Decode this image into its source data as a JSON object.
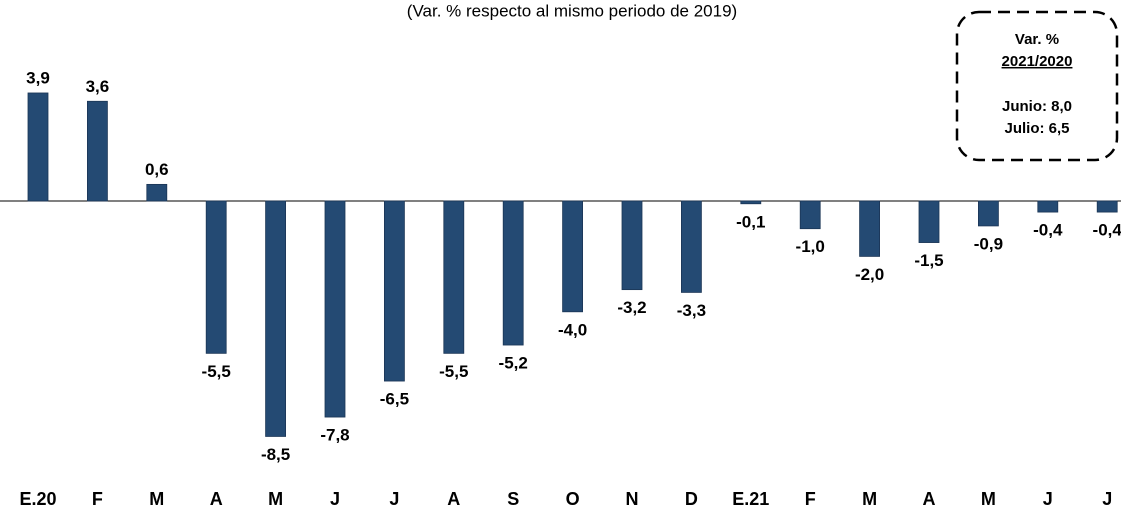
{
  "chart_data": {
    "type": "bar",
    "subtitle": "(Var. % respecto al mismo periodo de 2019)",
    "categories": [
      "E.20",
      "F",
      "M",
      "A",
      "M",
      "J",
      "J",
      "A",
      "S",
      "O",
      "N",
      "D",
      "E.21",
      "F",
      "M",
      "A",
      "M",
      "J",
      "J"
    ],
    "values": [
      3.9,
      3.6,
      0.6,
      -5.5,
      -8.5,
      -7.8,
      -6.5,
      -5.5,
      -5.2,
      -4.0,
      -3.2,
      -3.3,
      -0.1,
      -1.0,
      -2.0,
      -1.5,
      -0.9,
      -0.4,
      -0.4
    ],
    "value_labels": [
      "3,9",
      "3,6",
      "0,6",
      "-5,5",
      "-8,5",
      "-7,8",
      "-6,5",
      "-5,5",
      "-5,2",
      "-4,0",
      "-3,2",
      "-3,3",
      "-0,1",
      "-1,0",
      "-2,0",
      "-1,5",
      "-0,9",
      "-0,4",
      "-0,4"
    ],
    "color": "#244a73",
    "annotations": [
      "Var. %",
      "2021/2020",
      "Junio: 8,0",
      "Julio: 6,5"
    ]
  }
}
